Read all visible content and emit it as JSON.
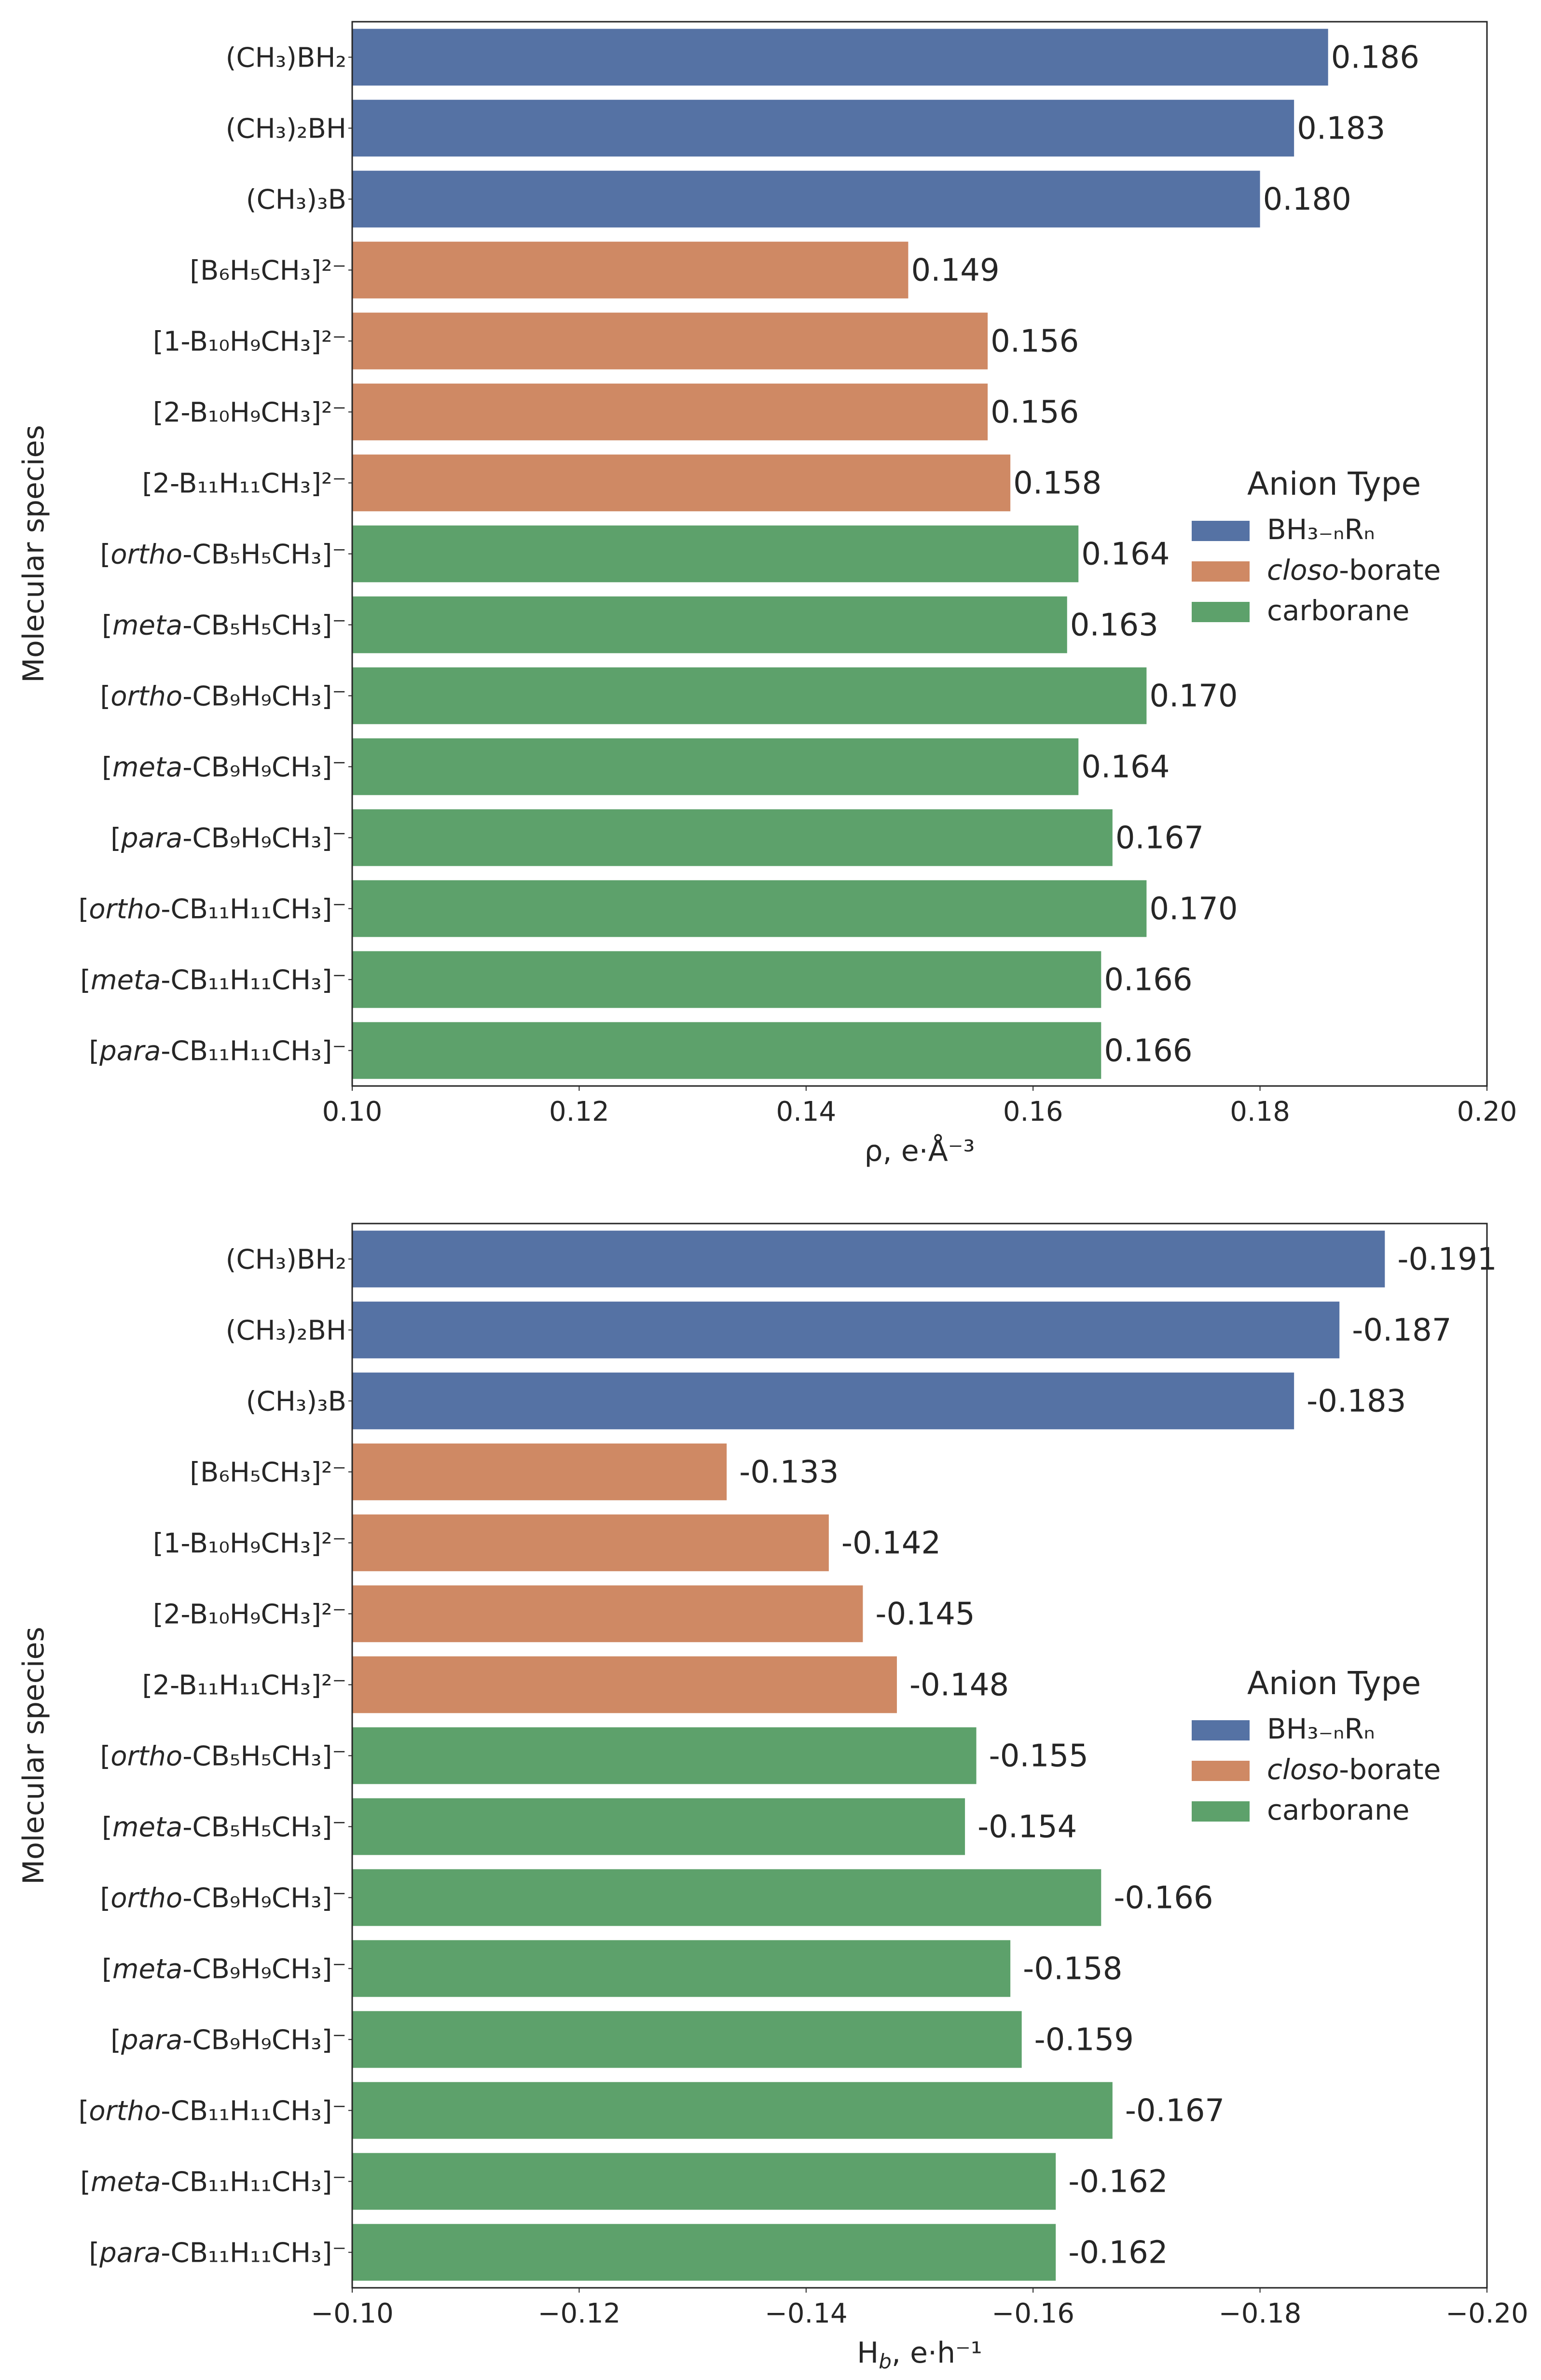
{
  "colors": {
    "BH": "#5572a4",
    "closo": "#cf8964",
    "carborane": "#5da16b"
  },
  "categories": [
    {
      "label": "(CH₃)BH₂",
      "group": "BH"
    },
    {
      "label": "(CH₃)₂BH",
      "group": "BH"
    },
    {
      "label": "(CH₃)₃B",
      "group": "BH"
    },
    {
      "label": "[B₆H₅CH₃]²⁻",
      "group": "closo"
    },
    {
      "label": "[1-B₁₀H₉CH₃]²⁻",
      "group": "closo"
    },
    {
      "label": "[2-B₁₀H₉CH₃]²⁻",
      "group": "closo"
    },
    {
      "label": "[2-B₁₁H₁₁CH₃]²⁻",
      "group": "closo"
    },
    {
      "label": "CB₅H₅CH₃]⁻",
      "prefix": "ortho",
      "group": "carborane"
    },
    {
      "label": "CB₅H₅CH₃]⁻",
      "prefix": "meta",
      "group": "carborane"
    },
    {
      "label": "CB₉H₉CH₃]⁻",
      "prefix": "ortho",
      "group": "carborane"
    },
    {
      "label": "CB₉H₉CH₃]⁻",
      "prefix": "meta",
      "group": "carborane"
    },
    {
      "label": "CB₉H₉CH₃]⁻",
      "prefix": "para",
      "group": "carborane"
    },
    {
      "label": "CB₁₁H₁₁CH₃]⁻",
      "prefix": "ortho",
      "group": "carborane"
    },
    {
      "label": "CB₁₁H₁₁CH₃]⁻",
      "prefix": "meta",
      "group": "carborane"
    },
    {
      "label": "CB₁₁H₁₁CH₃]⁻",
      "prefix": "para",
      "group": "carborane"
    }
  ],
  "legend": {
    "title": "Anion Type",
    "items": [
      {
        "group": "BH",
        "text": "BH₃₋ₙRₙ"
      },
      {
        "group": "closo",
        "prefix": "closo",
        "text": "-borate"
      },
      {
        "group": "carborane",
        "text": "carborane"
      }
    ]
  },
  "chart_data": [
    {
      "type": "bar",
      "orientation": "horizontal",
      "ylabel": "Molecular species",
      "xlabel": "ρ, e·Å⁻³",
      "xlim": [
        0.1,
        0.2
      ],
      "xticks": [
        0.1,
        0.12,
        0.14,
        0.16,
        0.18,
        0.2
      ],
      "xtick_labels": [
        "0.10",
        "0.12",
        "0.14",
        "0.16",
        "0.18",
        "0.20"
      ],
      "values": [
        0.186,
        0.183,
        0.18,
        0.149,
        0.156,
        0.156,
        0.158,
        0.164,
        0.163,
        0.17,
        0.164,
        0.167,
        0.17,
        0.166,
        0.166
      ],
      "value_labels": [
        "0.186",
        "0.183",
        "0.180",
        "0.149",
        "0.156",
        "0.156",
        "0.158",
        "0.164",
        "0.163",
        "0.170",
        "0.164",
        "0.167",
        "0.170",
        "0.166",
        "0.166"
      ],
      "legend_position": "center-right"
    },
    {
      "type": "bar",
      "orientation": "horizontal",
      "ylabel": "Molecular species",
      "xlabel_main": "H",
      "xlabel_sub": "b",
      "xlabel_rest": ", e·h⁻¹",
      "xlim": [
        -0.1,
        -0.2
      ],
      "xticks": [
        -0.1,
        -0.12,
        -0.14,
        -0.16,
        -0.18,
        -0.2
      ],
      "xtick_labels": [
        "−0.10",
        "−0.12",
        "−0.14",
        "−0.16",
        "−0.18",
        "−0.20"
      ],
      "values": [
        -0.191,
        -0.187,
        -0.183,
        -0.133,
        -0.142,
        -0.145,
        -0.148,
        -0.155,
        -0.154,
        -0.166,
        -0.158,
        -0.159,
        -0.167,
        -0.162,
        -0.162
      ],
      "value_labels": [
        "-0.191",
        "-0.187",
        "-0.183",
        "-0.133",
        "-0.142",
        "-0.145",
        "-0.148",
        "-0.155",
        "-0.154",
        "-0.166",
        "-0.158",
        "-0.159",
        "-0.167",
        "-0.162",
        "-0.162"
      ],
      "legend_position": "center-right"
    }
  ]
}
